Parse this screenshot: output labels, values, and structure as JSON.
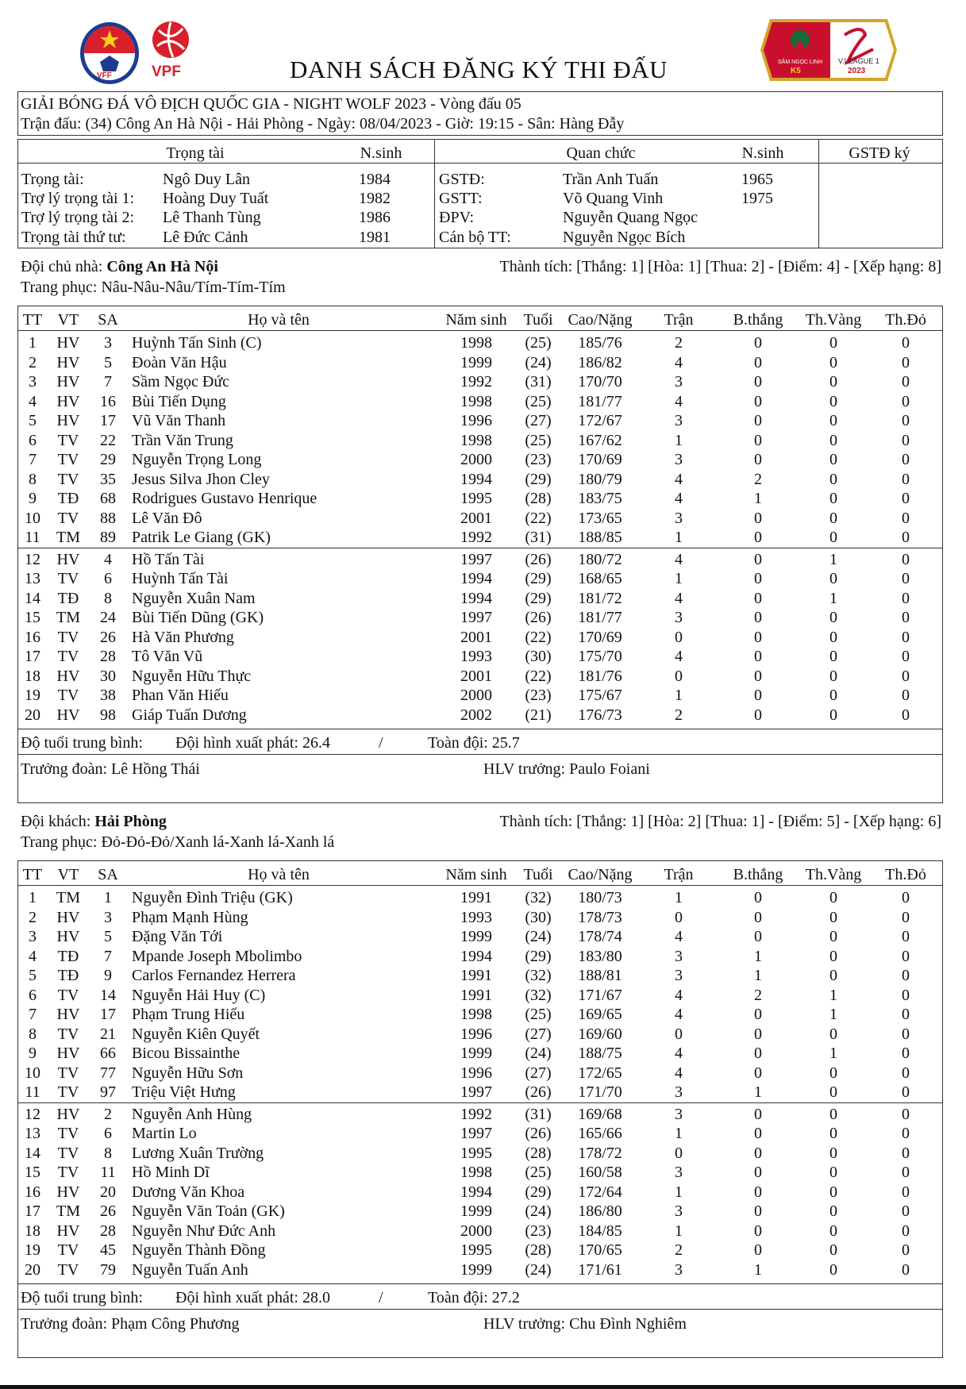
{
  "header": {
    "title": "DANH SÁCH ĐĂNG KÝ THI ĐẤU",
    "logos": [
      "VFF",
      "VPF",
      "V.LEAGUE 1 2023"
    ],
    "tournament": "GIẢI BÓNG ĐÁ VÔ ĐỊCH QUỐC GIA - NIGHT WOLF 2023 - Vòng đấu 05",
    "match": "Trận đấu: (34) Công An Hà Nội - Hải Phòng - Ngày: 08/04/2023 - Giờ: 19:15 - Sân: Hàng Đẫy"
  },
  "officials": {
    "headers": {
      "referee": "Trọng tài",
      "ref_year": "N.sinh",
      "official": "Quan chức",
      "off_year": "N.sinh",
      "sign": "GSTĐ ký"
    },
    "referees": [
      {
        "role": "Trọng tài:",
        "name": "Ngô Duy Lân",
        "year": "1984"
      },
      {
        "role": "Trợ lý trọng tài 1:",
        "name": "Hoàng Duy Tuất",
        "year": "1982"
      },
      {
        "role": "Trợ lý trọng tài 2:",
        "name": "Lê Thanh Tùng",
        "year": "1986"
      },
      {
        "role": "Trọng tài thứ tư:",
        "name": "Lê Đức Cảnh",
        "year": "1981"
      }
    ],
    "officials": [
      {
        "role": "GSTĐ:",
        "name": "Trần Anh Tuấn",
        "year": "1965"
      },
      {
        "role": "GSTT:",
        "name": "Võ Quang Vinh",
        "year": "1975"
      },
      {
        "role": "ĐPV:",
        "name": "Nguyễn Quang Ngọc",
        "year": ""
      },
      {
        "role": "Cán bộ TT:",
        "name": "Nguyễn Ngọc Bích",
        "year": ""
      }
    ]
  },
  "columns": [
    "TT",
    "VT",
    "SA",
    "Họ và tên",
    "Năm sinh",
    "Tuổi",
    "Cao/Nặng",
    "Trận",
    "B.thắng",
    "Th.Vàng",
    "Th.Đỏ"
  ],
  "teams": [
    {
      "label": "Đội chủ nhà:",
      "name": "Công An Hà Nội",
      "record": "Thành tích: [Thắng: 1] [Hòa: 1] [Thua: 2] - [Điểm: 4] - [Xếp hạng: 8]",
      "kit": "Trang phục: Nâu-Nâu-Nâu/Tím-Tím-Tím",
      "players": [
        [
          "1",
          "HV",
          "3",
          "Huỳnh Tấn Sinh (C)",
          "1998",
          "(25)",
          "185/76",
          "2",
          "0",
          "0",
          "0"
        ],
        [
          "2",
          "HV",
          "5",
          "Đoàn Văn Hậu",
          "1999",
          "(24)",
          "186/82",
          "4",
          "0",
          "0",
          "0"
        ],
        [
          "3",
          "HV",
          "7",
          "Sầm Ngọc Đức",
          "1992",
          "(31)",
          "170/70",
          "3",
          "0",
          "0",
          "0"
        ],
        [
          "4",
          "HV",
          "16",
          "Bùi Tiến Dụng",
          "1998",
          "(25)",
          "181/77",
          "4",
          "0",
          "0",
          "0"
        ],
        [
          "5",
          "HV",
          "17",
          "Vũ Văn Thanh",
          "1996",
          "(27)",
          "172/67",
          "3",
          "0",
          "0",
          "0"
        ],
        [
          "6",
          "TV",
          "22",
          "Trần Văn Trung",
          "1998",
          "(25)",
          "167/62",
          "1",
          "0",
          "0",
          "0"
        ],
        [
          "7",
          "TV",
          "29",
          "Nguyễn Trọng Long",
          "2000",
          "(23)",
          "170/69",
          "3",
          "0",
          "0",
          "0"
        ],
        [
          "8",
          "TV",
          "35",
          "Jesus Silva Jhon Cley",
          "1994",
          "(29)",
          "180/79",
          "4",
          "2",
          "0",
          "0"
        ],
        [
          "9",
          "TĐ",
          "68",
          "Rodrigues Gustavo Henrique",
          "1995",
          "(28)",
          "183/75",
          "4",
          "1",
          "0",
          "0"
        ],
        [
          "10",
          "TV",
          "88",
          "Lê Văn Đô",
          "2001",
          "(22)",
          "173/65",
          "3",
          "0",
          "0",
          "0"
        ],
        [
          "11",
          "TM",
          "89",
          "Patrik Le Giang (GK)",
          "1992",
          "(31)",
          "188/85",
          "1",
          "0",
          "0",
          "0"
        ],
        [
          "12",
          "HV",
          "4",
          "Hồ Tấn Tài",
          "1997",
          "(26)",
          "180/72",
          "4",
          "0",
          "1",
          "0"
        ],
        [
          "13",
          "TV",
          "6",
          "Huỳnh Tấn Tài",
          "1994",
          "(29)",
          "168/65",
          "1",
          "0",
          "0",
          "0"
        ],
        [
          "14",
          "TĐ",
          "8",
          "Nguyễn Xuân Nam",
          "1994",
          "(29)",
          "181/72",
          "4",
          "0",
          "1",
          "0"
        ],
        [
          "15",
          "TM",
          "24",
          "Bùi Tiến Dũng (GK)",
          "1997",
          "(26)",
          "181/77",
          "3",
          "0",
          "0",
          "0"
        ],
        [
          "16",
          "TV",
          "26",
          "Hà Văn Phương",
          "2001",
          "(22)",
          "170/69",
          "0",
          "0",
          "0",
          "0"
        ],
        [
          "17",
          "TV",
          "28",
          "Tô Văn Vũ",
          "1993",
          "(30)",
          "175/70",
          "4",
          "0",
          "0",
          "0"
        ],
        [
          "18",
          "HV",
          "30",
          "Nguyễn Hữu Thực",
          "2001",
          "(22)",
          "181/76",
          "0",
          "0",
          "0",
          "0"
        ],
        [
          "19",
          "TV",
          "38",
          "Phan Văn Hiếu",
          "2000",
          "(23)",
          "175/67",
          "1",
          "0",
          "0",
          "0"
        ],
        [
          "20",
          "HV",
          "98",
          "Giáp Tuấn Dương",
          "2002",
          "(21)",
          "176/73",
          "2",
          "0",
          "0",
          "0"
        ]
      ],
      "avg_label": "Độ tuổi trung bình:",
      "avg_start": "Đội hình xuất phát: 26.4",
      "avg_sep": "/",
      "avg_all": "Toàn đội: 25.7",
      "manager": "Trưởng đoàn: Lê Hồng Thái",
      "coach": "HLV trưởng: Paulo Foiani"
    },
    {
      "label": "Đội khách:",
      "name": "Hải Phòng",
      "record": "Thành tích: [Thắng: 1] [Hòa: 2] [Thua: 1] - [Điểm: 5] - [Xếp hạng: 6]",
      "kit": "Trang phục: Đỏ-Đỏ-Đỏ/Xanh lá-Xanh lá-Xanh lá",
      "players": [
        [
          "1",
          "TM",
          "1",
          "Nguyễn Đình Triệu (GK)",
          "1991",
          "(32)",
          "180/73",
          "1",
          "0",
          "0",
          "0"
        ],
        [
          "2",
          "HV",
          "3",
          "Phạm Mạnh Hùng",
          "1993",
          "(30)",
          "178/73",
          "0",
          "0",
          "0",
          "0"
        ],
        [
          "3",
          "HV",
          "5",
          "Đặng Văn Tới",
          "1999",
          "(24)",
          "178/74",
          "4",
          "0",
          "0",
          "0"
        ],
        [
          "4",
          "TĐ",
          "7",
          "Mpande Joseph Mbolimbo",
          "1994",
          "(29)",
          "183/80",
          "3",
          "1",
          "0",
          "0"
        ],
        [
          "5",
          "TĐ",
          "9",
          "Carlos Fernandez Herrera",
          "1991",
          "(32)",
          "188/81",
          "3",
          "1",
          "0",
          "0"
        ],
        [
          "6",
          "TV",
          "14",
          "Nguyễn Hải Huy (C)",
          "1991",
          "(32)",
          "171/67",
          "4",
          "2",
          "1",
          "0"
        ],
        [
          "7",
          "HV",
          "17",
          "Phạm Trung Hiếu",
          "1998",
          "(25)",
          "169/65",
          "4",
          "0",
          "1",
          "0"
        ],
        [
          "8",
          "TV",
          "21",
          "Nguyễn Kiên Quyết",
          "1996",
          "(27)",
          "169/60",
          "0",
          "0",
          "0",
          "0"
        ],
        [
          "9",
          "HV",
          "66",
          "Bicou Bissainthe",
          "1999",
          "(24)",
          "188/75",
          "4",
          "0",
          "1",
          "0"
        ],
        [
          "10",
          "TV",
          "77",
          "Nguyễn Hữu Sơn",
          "1996",
          "(27)",
          "172/65",
          "4",
          "0",
          "0",
          "0"
        ],
        [
          "11",
          "TV",
          "97",
          "Triệu Việt Hưng",
          "1997",
          "(26)",
          "171/70",
          "3",
          "1",
          "0",
          "0"
        ],
        [
          "12",
          "HV",
          "2",
          "Nguyễn Anh Hùng",
          "1992",
          "(31)",
          "169/68",
          "3",
          "0",
          "0",
          "0"
        ],
        [
          "13",
          "TV",
          "6",
          "Martin Lo",
          "1997",
          "(26)",
          "165/66",
          "1",
          "0",
          "0",
          "0"
        ],
        [
          "14",
          "TV",
          "8",
          "Lương Xuân Trường",
          "1995",
          "(28)",
          "178/72",
          "0",
          "0",
          "0",
          "0"
        ],
        [
          "15",
          "TV",
          "11",
          "Hồ Minh Dĩ",
          "1998",
          "(25)",
          "160/58",
          "3",
          "0",
          "0",
          "0"
        ],
        [
          "16",
          "HV",
          "20",
          "Dương Văn Khoa",
          "1994",
          "(29)",
          "172/64",
          "1",
          "0",
          "0",
          "0"
        ],
        [
          "17",
          "TM",
          "26",
          "Nguyễn Văn Toản (GK)",
          "1999",
          "(24)",
          "186/80",
          "3",
          "0",
          "0",
          "0"
        ],
        [
          "18",
          "HV",
          "28",
          "Nguyễn Như Đức Anh",
          "2000",
          "(23)",
          "184/85",
          "1",
          "0",
          "0",
          "0"
        ],
        [
          "19",
          "TV",
          "45",
          "Nguyễn Thành Đồng",
          "1995",
          "(28)",
          "170/65",
          "2",
          "0",
          "0",
          "0"
        ],
        [
          "20",
          "TV",
          "79",
          "Nguyễn Tuấn Anh",
          "1999",
          "(24)",
          "171/61",
          "3",
          "1",
          "0",
          "0"
        ]
      ],
      "avg_label": "Độ tuổi trung bình:",
      "avg_start": "Đội hình xuất phát: 28.0",
      "avg_sep": "/",
      "avg_all": "Toàn đội: 27.2",
      "manager": "Trưởng đoàn: Phạm Công Phương",
      "coach": "HLV trưởng: Chu Đình Nghiêm"
    }
  ],
  "colors": {
    "vff_red": "#d7202a",
    "vff_blue": "#1d3b8f",
    "league_red": "#c8102e",
    "league_green": "#1a6b3a",
    "league_gold": "#d4a52a"
  }
}
